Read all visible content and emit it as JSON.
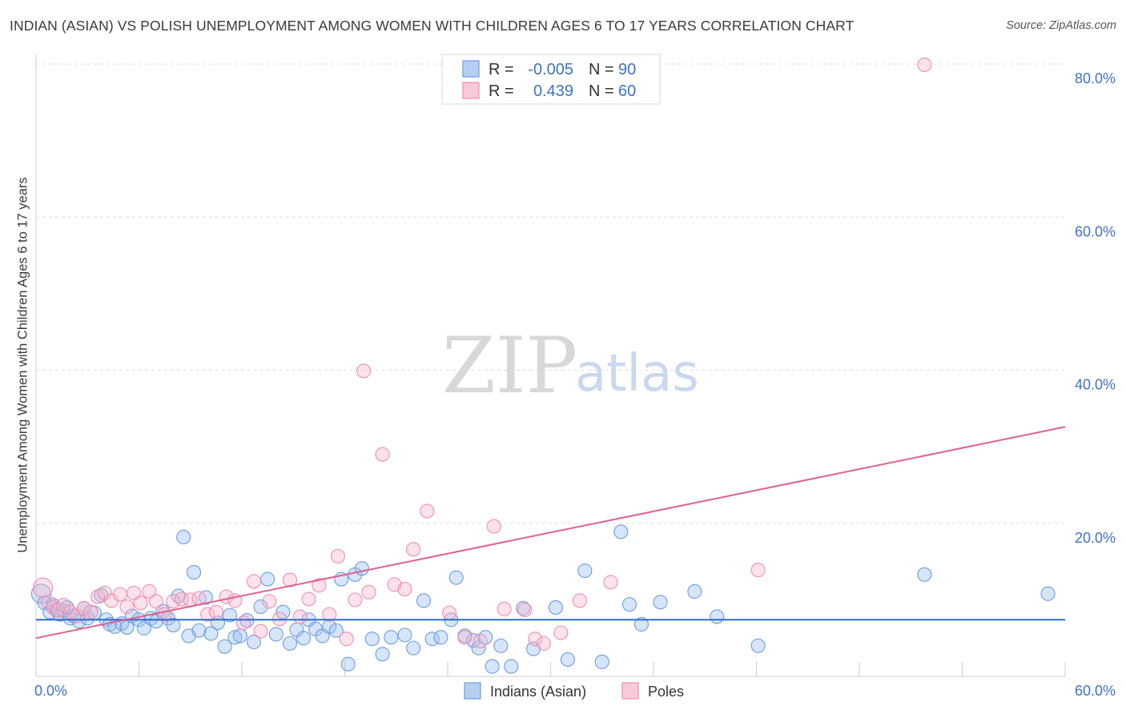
{
  "title": "INDIAN (ASIAN) VS POLISH UNEMPLOYMENT AMONG WOMEN WITH CHILDREN AGES 6 TO 17 YEARS CORRELATION CHART",
  "source": "Source: ZipAtlas.com",
  "watermark": {
    "zip": "ZIP",
    "atlas": "atlas"
  },
  "colors": {
    "indians": "#6d9de0",
    "poles": "#ef8fb0",
    "indians_line": "#2a6fc9",
    "poles_line": "#e0608c",
    "tick": "#3f73c5"
  },
  "legend": {
    "rows": [
      {
        "r_label": "R =",
        "r_value": "-0.005",
        "n_label": "N =",
        "n_value": "90"
      },
      {
        "r_label": "R =",
        "r_value": "0.439",
        "n_label": "N =",
        "n_value": "60"
      }
    ]
  },
  "bottom_legend": {
    "indians": "Indians (Asian)",
    "poles": "Poles"
  },
  "chart_data": {
    "type": "scatter",
    "title": "INDIAN (ASIAN) VS POLISH UNEMPLOYMENT AMONG WOMEN WITH CHILDREN AGES 6 TO 17 YEARS CORRELATION CHART",
    "xlabel": "",
    "ylabel": "Unemployment Among Women with Children Ages 6 to 17 years",
    "xlim": [
      0,
      60
    ],
    "ylim": [
      0,
      80
    ],
    "x_ticks": [
      "0.0%",
      "60.0%"
    ],
    "y_ticks": [
      "20.0%",
      "40.0%",
      "60.0%",
      "80.0%"
    ],
    "y_tick_values": [
      20,
      40,
      60,
      80
    ],
    "grid": "horizontal dashed",
    "legend_position": "top-center",
    "series": [
      {
        "name": "Indians (Asian)",
        "r": -0.005,
        "n": 90,
        "trend": {
          "x": [
            0,
            60
          ],
          "y": [
            7.4,
            7.4
          ]
        },
        "points": [
          [
            0.3,
            10.8
          ],
          [
            0.5,
            9.6
          ],
          [
            0.8,
            8.4
          ],
          [
            1.0,
            9.3
          ],
          [
            1.2,
            8.7
          ],
          [
            1.4,
            8.1
          ],
          [
            1.6,
            8.6
          ],
          [
            2.0,
            7.6
          ],
          [
            2.2,
            7.9
          ],
          [
            2.5,
            7.2
          ],
          [
            3.0,
            7.6
          ],
          [
            3.4,
            8.3
          ],
          [
            3.8,
            10.6
          ],
          [
            4.1,
            7.4
          ],
          [
            4.3,
            6.8
          ],
          [
            4.6,
            6.5
          ],
          [
            5.0,
            6.9
          ],
          [
            5.3,
            6.4
          ],
          [
            5.6,
            7.9
          ],
          [
            6.0,
            7.4
          ],
          [
            6.3,
            6.3
          ],
          [
            6.7,
            7.6
          ],
          [
            7.0,
            7.2
          ],
          [
            7.4,
            8.5
          ],
          [
            7.7,
            7.6
          ],
          [
            8.0,
            6.7
          ],
          [
            8.3,
            10.5
          ],
          [
            8.6,
            18.2
          ],
          [
            8.9,
            5.3
          ],
          [
            9.2,
            13.6
          ],
          [
            9.5,
            6.0
          ],
          [
            9.9,
            10.3
          ],
          [
            10.2,
            5.6
          ],
          [
            10.6,
            7.0
          ],
          [
            11.0,
            3.9
          ],
          [
            11.3,
            8.0
          ],
          [
            11.6,
            5.1
          ],
          [
            11.9,
            5.3
          ],
          [
            12.3,
            7.3
          ],
          [
            12.7,
            4.5
          ],
          [
            13.1,
            9.1
          ],
          [
            13.5,
            12.7
          ],
          [
            14.0,
            5.5
          ],
          [
            14.4,
            8.4
          ],
          [
            14.8,
            4.3
          ],
          [
            15.2,
            6.1
          ],
          [
            15.6,
            5.0
          ],
          [
            15.9,
            7.4
          ],
          [
            16.3,
            6.2
          ],
          [
            16.7,
            5.3
          ],
          [
            17.1,
            6.5
          ],
          [
            17.5,
            6.0
          ],
          [
            17.8,
            12.7
          ],
          [
            18.2,
            1.6
          ],
          [
            18.6,
            13.3
          ],
          [
            19.0,
            14.1
          ],
          [
            19.6,
            4.9
          ],
          [
            20.2,
            2.9
          ],
          [
            20.7,
            5.1
          ],
          [
            21.5,
            5.4
          ],
          [
            22.0,
            3.7
          ],
          [
            22.6,
            9.9
          ],
          [
            23.1,
            4.9
          ],
          [
            23.6,
            5.1
          ],
          [
            24.2,
            7.4
          ],
          [
            24.5,
            12.9
          ],
          [
            25.0,
            5.3
          ],
          [
            25.5,
            4.7
          ],
          [
            25.8,
            3.7
          ],
          [
            26.2,
            5.1
          ],
          [
            26.6,
            1.3
          ],
          [
            27.1,
            4.0
          ],
          [
            27.7,
            1.3
          ],
          [
            28.4,
            8.9
          ],
          [
            29.0,
            3.6
          ],
          [
            30.3,
            9.0
          ],
          [
            31.0,
            2.2
          ],
          [
            32.0,
            13.8
          ],
          [
            33.0,
            1.9
          ],
          [
            34.1,
            18.9
          ],
          [
            34.6,
            9.4
          ],
          [
            35.3,
            6.8
          ],
          [
            36.4,
            9.7
          ],
          [
            38.4,
            11.1
          ],
          [
            39.7,
            7.8
          ],
          [
            42.1,
            4.0
          ],
          [
            51.8,
            13.3
          ],
          [
            59.0,
            10.8
          ],
          [
            1.8,
            9.0
          ],
          [
            2.8,
            8.9
          ]
        ]
      },
      {
        "name": "Poles",
        "r": 0.439,
        "n": 60,
        "trend": {
          "x": [
            0,
            60
          ],
          "y": [
            5.0,
            32.6
          ]
        },
        "points": [
          [
            0.4,
            11.6
          ],
          [
            0.7,
            9.7
          ],
          [
            1.0,
            9.0
          ],
          [
            1.3,
            8.6
          ],
          [
            1.6,
            9.3
          ],
          [
            2.0,
            8.4
          ],
          [
            2.4,
            7.9
          ],
          [
            2.8,
            8.9
          ],
          [
            3.2,
            8.4
          ],
          [
            3.6,
            10.4
          ],
          [
            4.0,
            10.9
          ],
          [
            4.4,
            9.9
          ],
          [
            4.9,
            10.7
          ],
          [
            5.3,
            9.1
          ],
          [
            5.7,
            10.9
          ],
          [
            6.1,
            9.6
          ],
          [
            6.6,
            11.1
          ],
          [
            7.0,
            9.8
          ],
          [
            7.5,
            8.1
          ],
          [
            8.0,
            9.8
          ],
          [
            8.5,
            10.1
          ],
          [
            9.0,
            10.0
          ],
          [
            9.5,
            10.2
          ],
          [
            10.0,
            8.1
          ],
          [
            10.5,
            8.4
          ],
          [
            11.1,
            10.4
          ],
          [
            11.6,
            9.9
          ],
          [
            12.1,
            7.0
          ],
          [
            12.7,
            12.4
          ],
          [
            13.1,
            5.9
          ],
          [
            13.6,
            9.8
          ],
          [
            14.2,
            7.5
          ],
          [
            14.8,
            12.6
          ],
          [
            15.4,
            7.8
          ],
          [
            15.9,
            10.1
          ],
          [
            16.5,
            11.9
          ],
          [
            17.1,
            8.1
          ],
          [
            17.6,
            15.7
          ],
          [
            18.1,
            4.9
          ],
          [
            18.6,
            10.0
          ],
          [
            19.4,
            11.0
          ],
          [
            20.2,
            29.0
          ],
          [
            20.9,
            12.0
          ],
          [
            21.5,
            11.4
          ],
          [
            22.0,
            16.6
          ],
          [
            22.8,
            21.6
          ],
          [
            24.1,
            8.3
          ],
          [
            25.0,
            5.1
          ],
          [
            25.9,
            4.6
          ],
          [
            26.7,
            19.6
          ],
          [
            27.3,
            8.8
          ],
          [
            28.5,
            8.7
          ],
          [
            29.1,
            4.9
          ],
          [
            29.6,
            4.3
          ],
          [
            30.6,
            5.7
          ],
          [
            31.7,
            9.9
          ],
          [
            33.5,
            12.3
          ],
          [
            42.1,
            13.9
          ],
          [
            51.8,
            79.9
          ],
          [
            19.1,
            39.9
          ]
        ]
      }
    ]
  }
}
